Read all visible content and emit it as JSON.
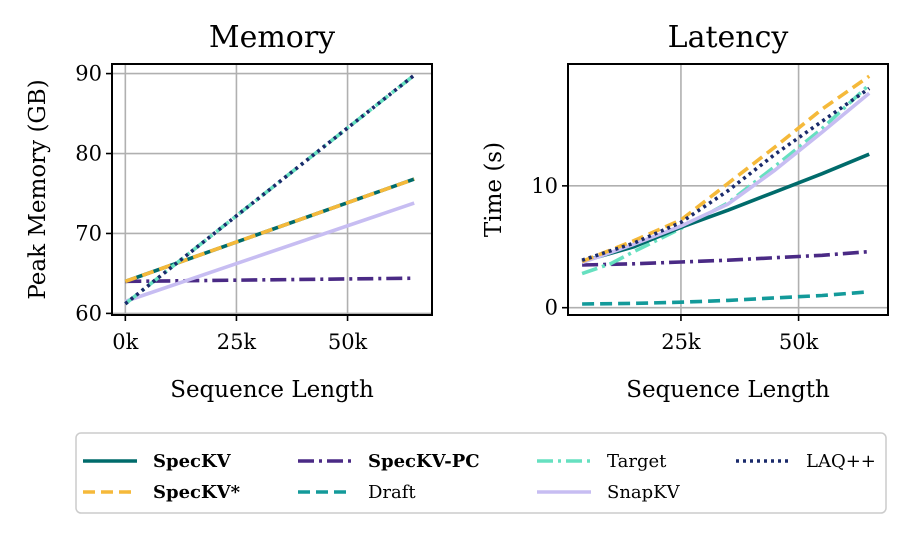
{
  "charts": [
    {
      "type": "line",
      "title": "Memory",
      "xlabel": "Sequence Length",
      "ylabel": "Peak Memory (GB)",
      "xlim": [
        -3000,
        69000
      ],
      "ylim": [
        59.8,
        91.2
      ],
      "xticks": [
        {
          "v": 0,
          "label": "0k"
        },
        {
          "v": 25000,
          "label": "25k"
        },
        {
          "v": 50000,
          "label": "50k"
        }
      ],
      "yticks": [
        {
          "v": 60,
          "label": "60"
        },
        {
          "v": 70,
          "label": "70"
        },
        {
          "v": 80,
          "label": "80"
        },
        {
          "v": 90,
          "label": "90"
        }
      ],
      "grid": true,
      "series": [
        {
          "name": "SpecKV-PC",
          "x": [
            0,
            65000
          ],
          "y": [
            64.0,
            64.4
          ]
        },
        {
          "name": "SnapKV",
          "x": [
            0,
            65000
          ],
          "y": [
            61.5,
            73.8
          ]
        },
        {
          "name": "SpecKV",
          "x": [
            0,
            65000
          ],
          "y": [
            64.0,
            76.8
          ]
        },
        {
          "name": "SpecKV*",
          "x": [
            0,
            65000
          ],
          "y": [
            64.0,
            76.8
          ]
        },
        {
          "name": "Target",
          "x": [
            0,
            65000
          ],
          "y": [
            61.2,
            89.8
          ]
        },
        {
          "name": "LAQ++",
          "x": [
            0,
            65000
          ],
          "y": [
            61.2,
            89.8
          ]
        }
      ]
    },
    {
      "type": "line",
      "title": "Latency",
      "xlabel": "Sequence Length",
      "ylabel": "Time (s)",
      "xlim": [
        1000,
        69000
      ],
      "ylim": [
        -0.6,
        20.0
      ],
      "xticks": [
        {
          "v": 25000,
          "label": "25k"
        },
        {
          "v": 50000,
          "label": "50k"
        }
      ],
      "yticks": [
        {
          "v": 0,
          "label": "0"
        },
        {
          "v": 10,
          "label": "10"
        }
      ],
      "grid": true,
      "series": [
        {
          "name": "Draft",
          "x": [
            4000,
            15000,
            25000,
            35000,
            45000,
            55000,
            65000
          ],
          "y": [
            0.3,
            0.35,
            0.45,
            0.6,
            0.8,
            1.0,
            1.3
          ]
        },
        {
          "name": "SpecKV-PC",
          "x": [
            4000,
            15000,
            25000,
            35000,
            45000,
            55000,
            65000
          ],
          "y": [
            3.5,
            3.6,
            3.75,
            3.9,
            4.1,
            4.3,
            4.6
          ]
        },
        {
          "name": "Target",
          "x": [
            4000,
            10000,
            15000,
            25000,
            35000,
            45000,
            55000,
            65000
          ],
          "y": [
            2.8,
            3.6,
            4.6,
            6.5,
            8.6,
            11.6,
            14.7,
            18.3
          ]
        },
        {
          "name": "SpecKV",
          "x": [
            4000,
            15000,
            25000,
            35000,
            45000,
            55000,
            65000
          ],
          "y": [
            3.8,
            5.0,
            6.6,
            8.0,
            9.5,
            11.0,
            12.6
          ]
        },
        {
          "name": "SnapKV",
          "x": [
            4000,
            15000,
            25000,
            35000,
            45000,
            55000,
            65000
          ],
          "y": [
            3.7,
            5.2,
            6.7,
            8.5,
            11.3,
            14.4,
            17.6
          ]
        },
        {
          "name": "SpecKV*",
          "x": [
            4000,
            15000,
            25000,
            35000,
            45000,
            55000,
            65000
          ],
          "y": [
            3.8,
            5.5,
            7.2,
            10.2,
            13.2,
            16.3,
            19.0
          ]
        },
        {
          "name": "LAQ++",
          "x": [
            4000,
            15000,
            25000,
            35000,
            45000,
            55000,
            65000
          ],
          "y": [
            3.9,
            5.3,
            7.0,
            9.6,
            12.6,
            15.3,
            18.0
          ]
        }
      ]
    }
  ],
  "styles": {
    "SpecKV": {
      "color": "#006b6b",
      "dash": ""
    },
    "SpecKV*": {
      "color": "#f5b93a",
      "dash": "12,6"
    },
    "SpecKV-PC": {
      "color": "#4a2a85",
      "dash": "16,5,3,5"
    },
    "Draft": {
      "color": "#139a9a",
      "dash": "12,6"
    },
    "Target": {
      "color": "#66e0c0",
      "dash": "16,5,3,5"
    },
    "SnapKV": {
      "color": "#c7bdf2",
      "dash": ""
    },
    "LAQ++": {
      "color": "#1a2a6b",
      "dash": "3,4"
    }
  },
  "legend": {
    "position": "bottom-center",
    "entries": [
      {
        "name": "SpecKV",
        "label": "SpecKV",
        "bold": true
      },
      {
        "name": "SpecKV*",
        "label": "SpecKV*",
        "bold": true
      },
      {
        "name": "SpecKV-PC",
        "label": "SpecKV-PC",
        "bold": true
      },
      {
        "name": "Draft",
        "label": "Draft",
        "bold": false
      },
      {
        "name": "Target",
        "label": "Target",
        "bold": false
      },
      {
        "name": "SnapKV",
        "label": "SnapKV",
        "bold": false
      },
      {
        "name": "LAQ++",
        "label": "LAQ++",
        "bold": false
      }
    ]
  }
}
